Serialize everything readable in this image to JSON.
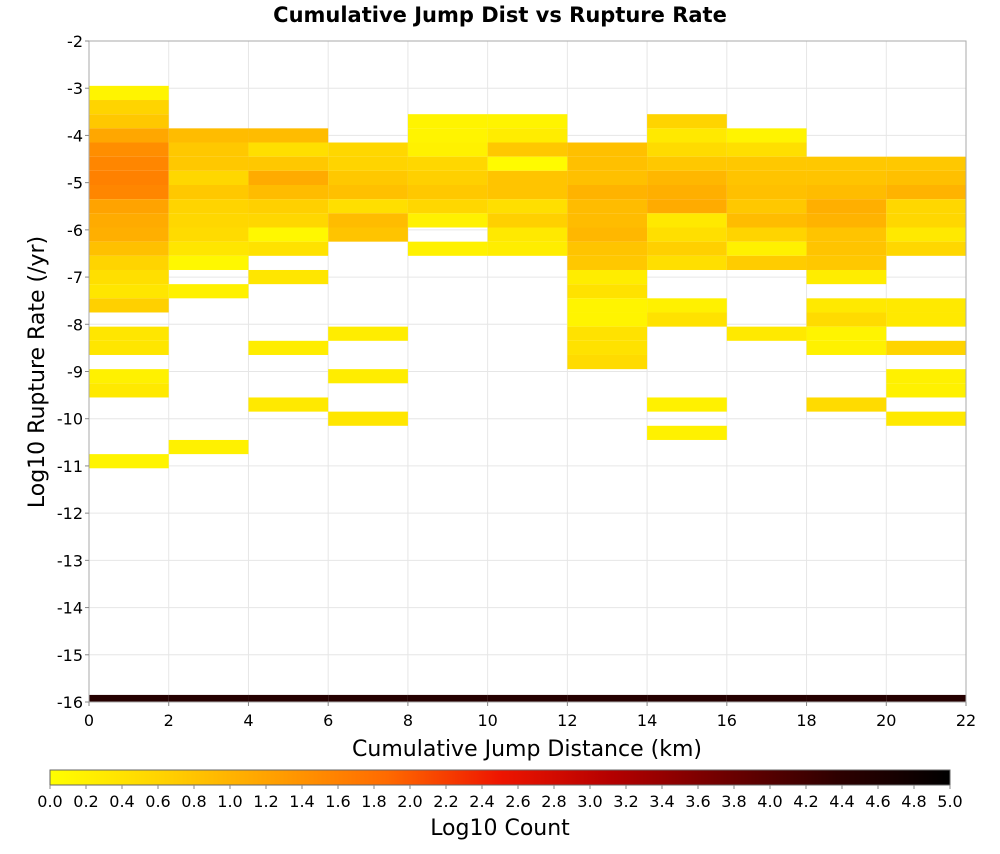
{
  "chart_data": {
    "type": "heatmap",
    "title": "Cumulative Jump Dist vs Rupture Rate",
    "xlabel": "Cumulative Jump Distance (km)",
    "ylabel": "Log10 Rupture Rate (/yr)",
    "xlim": [
      0,
      22
    ],
    "ylim": [
      -16,
      -2
    ],
    "x_ticks": [
      "0",
      "2",
      "4",
      "6",
      "8",
      "10",
      "12",
      "14",
      "16",
      "18",
      "20",
      "22"
    ],
    "y_ticks": [
      "-2",
      "-3",
      "-4",
      "-5",
      "-6",
      "-7",
      "-8",
      "-9",
      "-10",
      "-11",
      "-12",
      "-13",
      "-14",
      "-15",
      "-16"
    ],
    "x_bin_width": 2,
    "y_bin_height": 0.3,
    "grid": true,
    "colorbar": {
      "label": "Log10 Count",
      "range": [
        0,
        5
      ],
      "ticks": [
        "0.0",
        "0.2",
        "0.4",
        "0.6",
        "0.8",
        "1.0",
        "1.2",
        "1.4",
        "1.6",
        "1.8",
        "2.0",
        "2.2",
        "2.4",
        "2.6",
        "2.8",
        "3.0",
        "3.2",
        "3.4",
        "3.6",
        "3.8",
        "4.0",
        "4.2",
        "4.4",
        "4.6",
        "4.8",
        "5.0"
      ],
      "colors": [
        "#ffff00",
        "#ffd200",
        "#ff9f00",
        "#ff6a00",
        "#ee1500",
        "#b40000",
        "#6e0000",
        "#2e0000",
        "#000000"
      ]
    },
    "cells": [
      {
        "x": 0,
        "y": -3.1,
        "v": 0.15
      },
      {
        "x": 0,
        "y": -3.4,
        "v": 0.6
      },
      {
        "x": 0,
        "y": -3.7,
        "v": 0.75
      },
      {
        "x": 0,
        "y": -4.0,
        "v": 1.15
      },
      {
        "x": 0,
        "y": -4.3,
        "v": 1.45
      },
      {
        "x": 0,
        "y": -4.6,
        "v": 1.55
      },
      {
        "x": 0,
        "y": -4.9,
        "v": 1.6
      },
      {
        "x": 0,
        "y": -5.2,
        "v": 1.55
      },
      {
        "x": 0,
        "y": -5.5,
        "v": 1.2
      },
      {
        "x": 0,
        "y": -5.8,
        "v": 1.1
      },
      {
        "x": 0,
        "y": -6.1,
        "v": 1.05
      },
      {
        "x": 0,
        "y": -6.4,
        "v": 0.85
      },
      {
        "x": 0,
        "y": -6.7,
        "v": 0.6
      },
      {
        "x": 0,
        "y": -7.0,
        "v": 0.45
      },
      {
        "x": 0,
        "y": -7.3,
        "v": 0.35
      },
      {
        "x": 0,
        "y": -7.6,
        "v": 0.65
      },
      {
        "x": 0,
        "y": -8.2,
        "v": 0.35
      },
      {
        "x": 0,
        "y": -8.5,
        "v": 0.35
      },
      {
        "x": 0,
        "y": -9.1,
        "v": 0.2
      },
      {
        "x": 0,
        "y": -9.4,
        "v": 0.3
      },
      {
        "x": 0,
        "y": -10.9,
        "v": 0.15
      },
      {
        "x": 2,
        "y": -4.0,
        "v": 0.9
      },
      {
        "x": 2,
        "y": -4.3,
        "v": 0.75
      },
      {
        "x": 2,
        "y": -4.6,
        "v": 0.75
      },
      {
        "x": 2,
        "y": -4.9,
        "v": 0.55
      },
      {
        "x": 2,
        "y": -5.2,
        "v": 0.75
      },
      {
        "x": 2,
        "y": -5.5,
        "v": 0.6
      },
      {
        "x": 2,
        "y": -5.8,
        "v": 0.55
      },
      {
        "x": 2,
        "y": -6.1,
        "v": 0.5
      },
      {
        "x": 2,
        "y": -6.4,
        "v": 0.35
      },
      {
        "x": 2,
        "y": -6.7,
        "v": 0.1
      },
      {
        "x": 2,
        "y": -7.3,
        "v": 0.2
      },
      {
        "x": 2,
        "y": -10.6,
        "v": 0.2
      },
      {
        "x": 4,
        "y": -4.0,
        "v": 0.9
      },
      {
        "x": 4,
        "y": -4.3,
        "v": 0.45
      },
      {
        "x": 4,
        "y": -4.6,
        "v": 0.75
      },
      {
        "x": 4,
        "y": -4.9,
        "v": 1.1
      },
      {
        "x": 4,
        "y": -5.2,
        "v": 0.9
      },
      {
        "x": 4,
        "y": -5.5,
        "v": 0.65
      },
      {
        "x": 4,
        "y": -5.8,
        "v": 0.55
      },
      {
        "x": 4,
        "y": -6.1,
        "v": 0.1
      },
      {
        "x": 4,
        "y": -6.4,
        "v": 0.4
      },
      {
        "x": 4,
        "y": -7.0,
        "v": 0.35
      },
      {
        "x": 4,
        "y": -8.5,
        "v": 0.25
      },
      {
        "x": 4,
        "y": -9.7,
        "v": 0.3
      },
      {
        "x": 6,
        "y": -4.3,
        "v": 0.55
      },
      {
        "x": 6,
        "y": -4.6,
        "v": 0.6
      },
      {
        "x": 6,
        "y": -4.9,
        "v": 0.75
      },
      {
        "x": 6,
        "y": -5.2,
        "v": 0.85
      },
      {
        "x": 6,
        "y": -5.5,
        "v": 0.45
      },
      {
        "x": 6,
        "y": -5.8,
        "v": 0.9
      },
      {
        "x": 6,
        "y": -6.1,
        "v": 0.8
      },
      {
        "x": 6,
        "y": -8.2,
        "v": 0.25
      },
      {
        "x": 6,
        "y": -9.1,
        "v": 0.25
      },
      {
        "x": 6,
        "y": -10.0,
        "v": 0.35
      },
      {
        "x": 8,
        "y": -3.7,
        "v": 0.15
      },
      {
        "x": 8,
        "y": -4.0,
        "v": 0.15
      },
      {
        "x": 8,
        "y": -4.3,
        "v": 0.2
      },
      {
        "x": 8,
        "y": -4.6,
        "v": 0.55
      },
      {
        "x": 8,
        "y": -4.9,
        "v": 0.65
      },
      {
        "x": 8,
        "y": -5.2,
        "v": 0.75
      },
      {
        "x": 8,
        "y": -5.5,
        "v": 0.55
      },
      {
        "x": 8,
        "y": -5.8,
        "v": 0.2
      },
      {
        "x": 8,
        "y": -6.4,
        "v": 0.2
      },
      {
        "x": 10,
        "y": -3.7,
        "v": 0.15
      },
      {
        "x": 10,
        "y": -4.0,
        "v": 0.25
      },
      {
        "x": 10,
        "y": -4.3,
        "v": 0.75
      },
      {
        "x": 10,
        "y": -4.6,
        "v": 0.05
      },
      {
        "x": 10,
        "y": -4.9,
        "v": 0.8
      },
      {
        "x": 10,
        "y": -5.2,
        "v": 0.8
      },
      {
        "x": 10,
        "y": -5.5,
        "v": 0.45
      },
      {
        "x": 10,
        "y": -5.8,
        "v": 0.65
      },
      {
        "x": 10,
        "y": -6.1,
        "v": 0.3
      },
      {
        "x": 10,
        "y": -6.4,
        "v": 0.25
      },
      {
        "x": 12,
        "y": -4.3,
        "v": 0.85
      },
      {
        "x": 12,
        "y": -4.6,
        "v": 0.85
      },
      {
        "x": 12,
        "y": -4.9,
        "v": 0.85
      },
      {
        "x": 12,
        "y": -5.2,
        "v": 1.0
      },
      {
        "x": 12,
        "y": -5.5,
        "v": 0.9
      },
      {
        "x": 12,
        "y": -5.8,
        "v": 0.9
      },
      {
        "x": 12,
        "y": -6.1,
        "v": 0.95
      },
      {
        "x": 12,
        "y": -6.4,
        "v": 0.8
      },
      {
        "x": 12,
        "y": -6.7,
        "v": 0.75
      },
      {
        "x": 12,
        "y": -7.0,
        "v": 0.25
      },
      {
        "x": 12,
        "y": -7.3,
        "v": 0.4
      },
      {
        "x": 12,
        "y": -7.6,
        "v": 0.15
      },
      {
        "x": 12,
        "y": -7.9,
        "v": 0.15
      },
      {
        "x": 12,
        "y": -8.2,
        "v": 0.4
      },
      {
        "x": 12,
        "y": -8.5,
        "v": 0.4
      },
      {
        "x": 12,
        "y": -8.8,
        "v": 0.5
      },
      {
        "x": 14,
        "y": -3.7,
        "v": 0.6
      },
      {
        "x": 14,
        "y": -4.0,
        "v": 0.3
      },
      {
        "x": 14,
        "y": -4.3,
        "v": 0.5
      },
      {
        "x": 14,
        "y": -4.6,
        "v": 0.75
      },
      {
        "x": 14,
        "y": -4.9,
        "v": 0.95
      },
      {
        "x": 14,
        "y": -5.2,
        "v": 1.05
      },
      {
        "x": 14,
        "y": -5.5,
        "v": 1.1
      },
      {
        "x": 14,
        "y": -5.8,
        "v": 0.3
      },
      {
        "x": 14,
        "y": -6.1,
        "v": 0.45
      },
      {
        "x": 14,
        "y": -6.4,
        "v": 0.65
      },
      {
        "x": 14,
        "y": -6.7,
        "v": 0.45
      },
      {
        "x": 14,
        "y": -7.6,
        "v": 0.2
      },
      {
        "x": 14,
        "y": -7.9,
        "v": 0.4
      },
      {
        "x": 14,
        "y": -9.7,
        "v": 0.2
      },
      {
        "x": 14,
        "y": -10.3,
        "v": 0.2
      },
      {
        "x": 16,
        "y": -4.0,
        "v": 0.15
      },
      {
        "x": 16,
        "y": -4.3,
        "v": 0.45
      },
      {
        "x": 16,
        "y": -4.6,
        "v": 0.75
      },
      {
        "x": 16,
        "y": -4.9,
        "v": 0.8
      },
      {
        "x": 16,
        "y": -5.2,
        "v": 0.85
      },
      {
        "x": 16,
        "y": -5.5,
        "v": 0.75
      },
      {
        "x": 16,
        "y": -5.8,
        "v": 0.9
      },
      {
        "x": 16,
        "y": -6.1,
        "v": 0.6
      },
      {
        "x": 16,
        "y": -6.4,
        "v": 0.2
      },
      {
        "x": 16,
        "y": -6.7,
        "v": 0.7
      },
      {
        "x": 16,
        "y": -8.2,
        "v": 0.3
      },
      {
        "x": 18,
        "y": -4.6,
        "v": 0.75
      },
      {
        "x": 18,
        "y": -4.9,
        "v": 0.8
      },
      {
        "x": 18,
        "y": -5.2,
        "v": 0.9
      },
      {
        "x": 18,
        "y": -5.5,
        "v": 1.05
      },
      {
        "x": 18,
        "y": -5.8,
        "v": 1.0
      },
      {
        "x": 18,
        "y": -6.1,
        "v": 0.8
      },
      {
        "x": 18,
        "y": -6.4,
        "v": 0.8
      },
      {
        "x": 18,
        "y": -6.7,
        "v": 0.75
      },
      {
        "x": 18,
        "y": -7.0,
        "v": 0.25
      },
      {
        "x": 18,
        "y": -7.6,
        "v": 0.3
      },
      {
        "x": 18,
        "y": -7.9,
        "v": 0.5
      },
      {
        "x": 18,
        "y": -8.2,
        "v": 0.15
      },
      {
        "x": 18,
        "y": -8.5,
        "v": 0.2
      },
      {
        "x": 18,
        "y": -9.7,
        "v": 0.5
      },
      {
        "x": 20,
        "y": -4.6,
        "v": 0.75
      },
      {
        "x": 20,
        "y": -4.9,
        "v": 0.85
      },
      {
        "x": 20,
        "y": -5.2,
        "v": 1.0
      },
      {
        "x": 20,
        "y": -5.5,
        "v": 0.55
      },
      {
        "x": 20,
        "y": -5.8,
        "v": 0.55
      },
      {
        "x": 20,
        "y": -6.1,
        "v": 0.3
      },
      {
        "x": 20,
        "y": -6.4,
        "v": 0.55
      },
      {
        "x": 20,
        "y": -7.6,
        "v": 0.3
      },
      {
        "x": 20,
        "y": -7.9,
        "v": 0.3
      },
      {
        "x": 20,
        "y": -8.5,
        "v": 0.6
      },
      {
        "x": 20,
        "y": -9.1,
        "v": 0.2
      },
      {
        "x": 20,
        "y": -9.4,
        "v": 0.2
      },
      {
        "x": 20,
        "y": -10.0,
        "v": 0.3
      }
    ],
    "baseline_band": {
      "y": -16,
      "height": 0.15,
      "values": [
        4.5,
        4.5,
        4.5,
        4.5,
        4.5,
        4.5,
        4.5,
        4.5,
        4.5,
        4.5,
        4.5
      ]
    }
  }
}
